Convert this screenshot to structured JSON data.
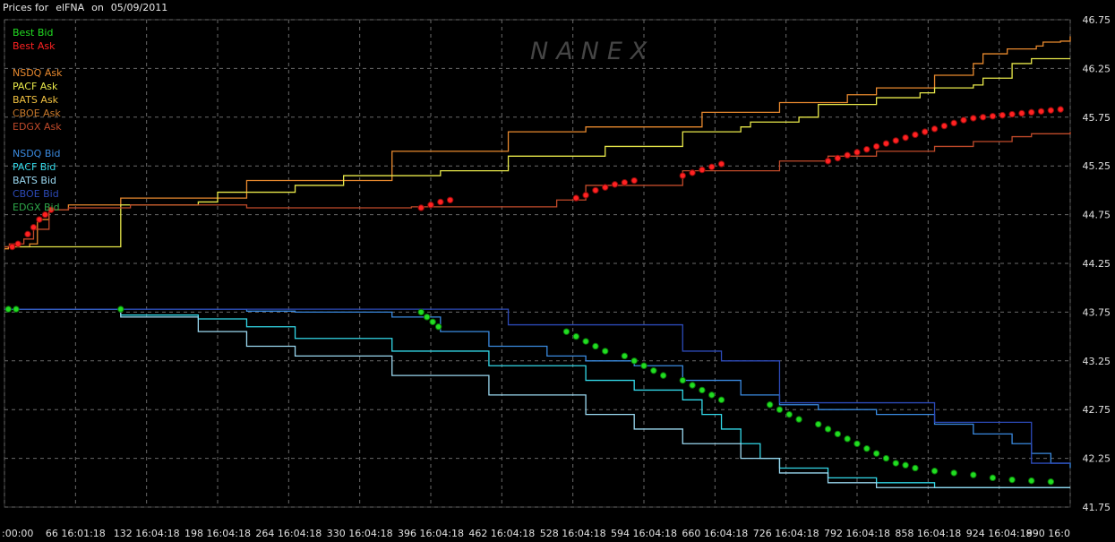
{
  "header": {
    "label": "Prices for",
    "symbol": "elFNA",
    "on_label": "on",
    "date": "05/09/2011"
  },
  "watermark": "NANEX",
  "legend": [
    {
      "name": "Best Bid",
      "color": "#22dd22"
    },
    {
      "name": "Best Ask",
      "color": "#ff2222"
    },
    null,
    {
      "name": "NSDQ Ask",
      "color": "#e8892e"
    },
    {
      "name": "PACF Ask",
      "color": "#e8e84a"
    },
    {
      "name": "BATS Ask",
      "color": "#f0c040"
    },
    {
      "name": "CBOE Ask",
      "color": "#c8782a"
    },
    {
      "name": "EDGX Ask",
      "color": "#c04a2a"
    },
    null,
    {
      "name": "NSDQ Bid",
      "color": "#3a8ae0"
    },
    {
      "name": "PACF Bid",
      "color": "#32d8e8"
    },
    {
      "name": "BATS Bid",
      "color": "#9ad8f0"
    },
    {
      "name": "CBOE Bid",
      "color": "#2c4ab8"
    },
    {
      "name": "EDGX Bid",
      "color": "#2ea84a"
    }
  ],
  "chart_data": {
    "type": "line",
    "y_ticks": [
      "46.75",
      "46.25",
      "45.75",
      "45.25",
      "44.75",
      "44.25",
      "43.75",
      "43.25",
      "42.75",
      "42.25",
      "41.75"
    ],
    "x_ticks": [
      ":00:00",
      "66 16:01:18",
      "132 16:04:18",
      "198 16:04:18",
      "264 16:04:18",
      "330 16:04:18",
      "396 16:04:18",
      "462 16:04:18",
      "528 16:04:18",
      "594 16:04:18",
      "660 16:04:18",
      "726 16:04:18",
      "792 16:04:18",
      "858 16:04:18",
      "924 16:04:18",
      "990 16:0"
    ],
    "ylim": [
      41.75,
      46.75
    ],
    "grid": true,
    "series": [
      {
        "name": "NSDQ Ask",
        "color": "#e8892e",
        "x": [
          0,
          4,
          10,
          26,
          34,
          46,
          66,
          120,
          250,
          400,
          520,
          600,
          720,
          800,
          870,
          900,
          960,
          1000,
          1010,
          1035,
          1065,
          1072,
          1090,
          1100
        ],
        "y": [
          44.4,
          44.42,
          44.42,
          44.45,
          44.7,
          44.8,
          44.85,
          44.92,
          45.1,
          45.4,
          45.6,
          45.65,
          45.8,
          45.9,
          45.98,
          46.05,
          46.18,
          46.3,
          46.4,
          46.45,
          46.48,
          46.52,
          46.53,
          46.58
        ]
      },
      {
        "name": "PACF Ask",
        "color": "#e8e84a",
        "x": [
          0,
          40,
          120,
          200,
          220,
          300,
          350,
          450,
          520,
          620,
          700,
          760,
          770,
          820,
          840,
          900,
          945,
          960,
          1000,
          1010,
          1040,
          1060,
          1100
        ],
        "y": [
          44.42,
          44.42,
          44.85,
          44.88,
          44.98,
          45.05,
          45.15,
          45.2,
          45.35,
          45.45,
          45.6,
          45.65,
          45.7,
          45.75,
          45.88,
          45.95,
          46.0,
          46.05,
          46.08,
          46.15,
          46.3,
          46.35,
          46.35
        ]
      },
      {
        "name": "EDGX Ask",
        "color": "#c04a2a",
        "x": [
          0,
          5,
          10,
          20,
          30,
          46,
          66,
          130,
          250,
          420,
          570,
          600,
          700,
          800,
          850,
          900,
          960,
          1000,
          1040,
          1060,
          1100
        ],
        "y": [
          44.42,
          44.45,
          44.45,
          44.5,
          44.6,
          44.8,
          44.82,
          44.85,
          44.82,
          44.83,
          44.9,
          45.05,
          45.2,
          45.3,
          45.35,
          45.4,
          45.45,
          45.5,
          45.55,
          45.58,
          45.6
        ]
      },
      {
        "name": "PACF Bid",
        "color": "#32d8e8",
        "x": [
          0,
          60,
          120,
          200,
          250,
          300,
          400,
          500,
          600,
          650,
          700,
          720,
          740,
          760,
          780,
          800,
          850,
          900,
          960,
          1000,
          1040,
          1060,
          1080,
          1100
        ],
        "y": [
          43.78,
          43.78,
          43.72,
          43.68,
          43.6,
          43.48,
          43.35,
          43.2,
          43.05,
          42.95,
          42.85,
          42.7,
          42.55,
          42.4,
          42.25,
          42.15,
          42.05,
          42.0,
          41.95,
          41.95,
          41.95,
          41.95,
          41.95,
          41.95
        ]
      },
      {
        "name": "BATS Bid",
        "color": "#9ad8f0",
        "x": [
          0,
          60,
          120,
          200,
          250,
          300,
          400,
          500,
          600,
          650,
          700,
          760,
          800,
          850,
          900,
          1000,
          1100
        ],
        "y": [
          43.78,
          43.78,
          43.7,
          43.55,
          43.4,
          43.3,
          43.1,
          42.9,
          42.7,
          42.55,
          42.4,
          42.25,
          42.1,
          42.0,
          41.95,
          41.95,
          41.95
        ]
      },
      {
        "name": "NSDQ Bid",
        "color": "#3a8ae0",
        "x": [
          0,
          40,
          80,
          120,
          200,
          250,
          300,
          350,
          400,
          450,
          500,
          560,
          600,
          650,
          700,
          760,
          800,
          840,
          900,
          960,
          1000,
          1040,
          1060,
          1080,
          1100
        ],
        "y": [
          43.78,
          43.78,
          43.78,
          43.78,
          43.78,
          43.76,
          43.75,
          43.75,
          43.7,
          43.55,
          43.4,
          43.3,
          43.25,
          43.2,
          43.05,
          42.9,
          42.8,
          42.75,
          42.7,
          42.6,
          42.5,
          42.4,
          42.3,
          42.2,
          42.15
        ]
      },
      {
        "name": "CBOE Bid",
        "color": "#2c4ab8",
        "x": [
          0,
          40,
          100,
          140,
          200,
          300,
          420,
          520,
          600,
          640,
          700,
          740,
          800,
          840,
          900,
          960,
          1000,
          1040,
          1060,
          1080,
          1100
        ],
        "y": [
          43.78,
          43.78,
          43.78,
          43.78,
          43.78,
          43.78,
          43.78,
          43.62,
          43.62,
          43.62,
          43.35,
          43.25,
          42.82,
          42.82,
          42.82,
          42.62,
          42.62,
          42.62,
          42.2,
          42.2,
          42.2
        ]
      }
    ],
    "markers": [
      {
        "name": "Best Ask",
        "color": "#ff2222",
        "x": [
          8,
          14,
          24,
          30,
          36,
          42,
          48,
          430,
          440,
          450,
          460,
          590,
          600,
          610,
          620,
          630,
          640,
          650,
          700,
          710,
          720,
          730,
          740,
          850,
          860,
          870,
          880,
          890,
          900,
          910,
          920,
          930,
          940,
          950,
          960,
          970,
          980,
          990,
          1000,
          1010,
          1020,
          1030,
          1040,
          1050,
          1060,
          1070,
          1080,
          1090
        ],
        "y": [
          44.42,
          44.45,
          44.55,
          44.62,
          44.7,
          44.75,
          44.8,
          44.82,
          44.85,
          44.88,
          44.9,
          44.92,
          44.95,
          45.0,
          45.03,
          45.06,
          45.08,
          45.1,
          45.15,
          45.18,
          45.21,
          45.24,
          45.27,
          45.3,
          45.33,
          45.36,
          45.39,
          45.42,
          45.45,
          45.48,
          45.51,
          45.54,
          45.57,
          45.6,
          45.63,
          45.66,
          45.69,
          45.72,
          45.74,
          45.75,
          45.76,
          45.77,
          45.78,
          45.79,
          45.8,
          45.81,
          45.82,
          45.83
        ]
      },
      {
        "name": "Best Bid",
        "color": "#22dd22",
        "x": [
          4,
          12,
          120,
          430,
          436,
          442,
          448,
          580,
          590,
          600,
          610,
          620,
          640,
          650,
          660,
          670,
          680,
          700,
          710,
          720,
          730,
          740,
          790,
          800,
          810,
          820,
          840,
          850,
          860,
          870,
          880,
          890,
          900,
          910,
          920,
          930,
          940,
          960,
          980,
          1000,
          1020,
          1040,
          1060,
          1080
        ],
        "y": [
          43.78,
          43.78,
          43.78,
          43.75,
          43.7,
          43.65,
          43.6,
          43.55,
          43.5,
          43.45,
          43.4,
          43.35,
          43.3,
          43.25,
          43.2,
          43.15,
          43.1,
          43.05,
          43.0,
          42.95,
          42.9,
          42.85,
          42.8,
          42.75,
          42.7,
          42.65,
          42.6,
          42.55,
          42.5,
          42.45,
          42.4,
          42.35,
          42.3,
          42.25,
          42.2,
          42.18,
          42.15,
          42.12,
          42.1,
          42.08,
          42.05,
          42.03,
          42.02,
          42.01
        ]
      }
    ]
  }
}
